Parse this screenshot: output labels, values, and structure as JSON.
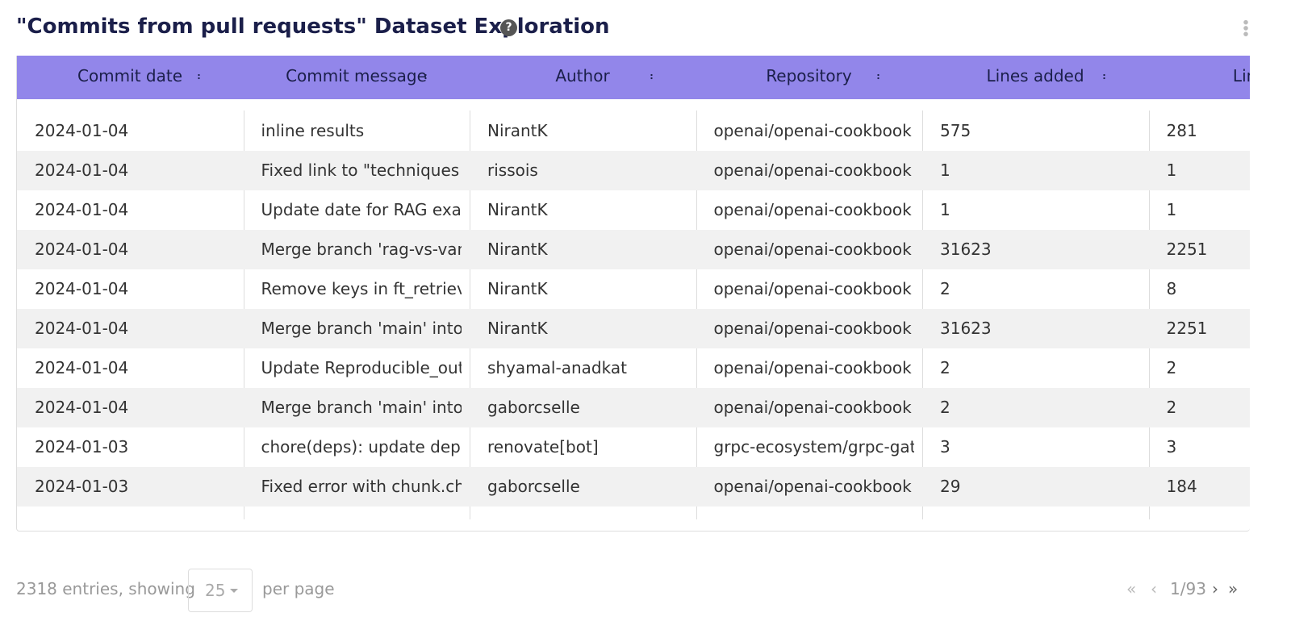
{
  "header": {
    "title": "\"Commits from pull requests\" Dataset Exploration"
  },
  "table": {
    "columns": [
      "Commit date",
      "Commit message",
      "Author",
      "Repository",
      "Lines added",
      "Lines d"
    ],
    "rows": [
      [
        "2024-01-04",
        "inline results",
        "NirantK",
        "openai/openai-cookbook",
        575,
        281
      ],
      [
        "2024-01-04",
        "Fixed link to \"techniques to",
        "rissois",
        "openai/openai-cookbook",
        1,
        1
      ],
      [
        "2024-01-04",
        "Update date for RAG exam",
        "NirantK",
        "openai/openai-cookbook",
        1,
        1
      ],
      [
        "2024-01-04",
        "Merge branch 'rag-vs-vani",
        "NirantK",
        "openai/openai-cookbook",
        31623,
        2251
      ],
      [
        "2024-01-04",
        "Remove keys in ft_retrieval",
        "NirantK",
        "openai/openai-cookbook",
        2,
        8
      ],
      [
        "2024-01-04",
        "Merge branch 'main' into ra",
        "NirantK",
        "openai/openai-cookbook",
        31623,
        2251
      ],
      [
        "2024-01-04",
        "Update Reproducible_outp",
        "shyamal-anadkat",
        "openai/openai-cookbook",
        2,
        2
      ],
      [
        "2024-01-04",
        "Merge branch 'main' into m",
        "gaborcselle",
        "openai/openai-cookbook",
        2,
        2
      ],
      [
        "2024-01-03",
        "chore(deps): update deper",
        "renovate[bot]",
        "grpc-ecosystem/grpc-gate",
        3,
        3
      ],
      [
        "2024-01-03",
        "Fixed error with chunk.cho",
        "gaborcselle",
        "openai/openai-cookbook",
        29,
        184
      ]
    ]
  },
  "footer": {
    "entries": "2318 entries, showing",
    "page_size": "25",
    "per_page": "per page",
    "page": "1/93"
  }
}
